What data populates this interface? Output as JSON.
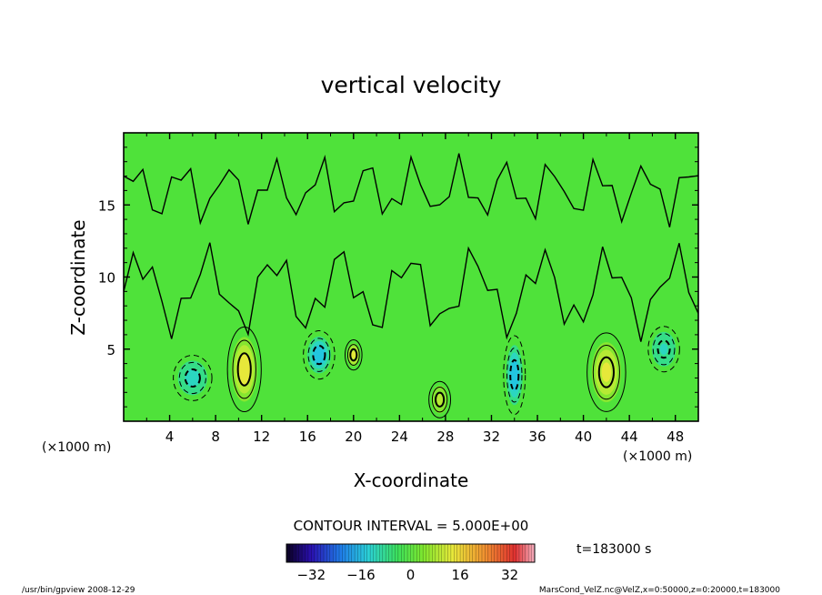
{
  "chart_data": {
    "type": "heatmap",
    "title": "vertical velocity",
    "xlabel": "X-coordinate",
    "ylabel": "Z-coordinate",
    "x_unit": "(×1000 m)",
    "xlim": [
      0,
      50
    ],
    "ylim": [
      0,
      20
    ],
    "x_ticks": [
      4,
      8,
      12,
      16,
      20,
      24,
      28,
      32,
      36,
      40,
      44,
      48
    ],
    "y_ticks": [
      5,
      10,
      15
    ],
    "contour_interval": "CONTOUR INTERVAL = 5.000E+00",
    "time_label": "t=183000 s",
    "colorbar": {
      "min": -40,
      "max": 40,
      "ticks": [
        -32,
        -16,
        0,
        16,
        32
      ]
    },
    "features": [
      {
        "x": 10.5,
        "z": 3.6,
        "w": 12,
        "rx": 1.4,
        "rz": 2.8
      },
      {
        "x": 42.0,
        "z": 3.4,
        "w": 9,
        "rx": 1.6,
        "rz": 2.6
      },
      {
        "x": 20.0,
        "z": 4.6,
        "w": 10,
        "rx": 0.7,
        "rz": 1.0
      },
      {
        "x": 27.5,
        "z": 1.5,
        "w": 6,
        "rx": 0.9,
        "rz": 1.2
      },
      {
        "x": 17.0,
        "z": 4.6,
        "w": -16,
        "rx": 1.3,
        "rz": 1.6
      },
      {
        "x": 34.0,
        "z": 3.2,
        "w": -14,
        "rx": 0.9,
        "rz": 2.6
      },
      {
        "x": 6.0,
        "z": 3.0,
        "w": -7,
        "rx": 1.6,
        "rz": 1.5
      },
      {
        "x": 47.0,
        "z": 5.0,
        "w": -6,
        "rx": 1.3,
        "rz": 1.5
      }
    ],
    "footer_left": "/usr/bin/gpview   2008-12-29",
    "footer_right": "MarsCond_VelZ.nc@VelZ,x=0:50000,z=0:20000,t=183000"
  }
}
